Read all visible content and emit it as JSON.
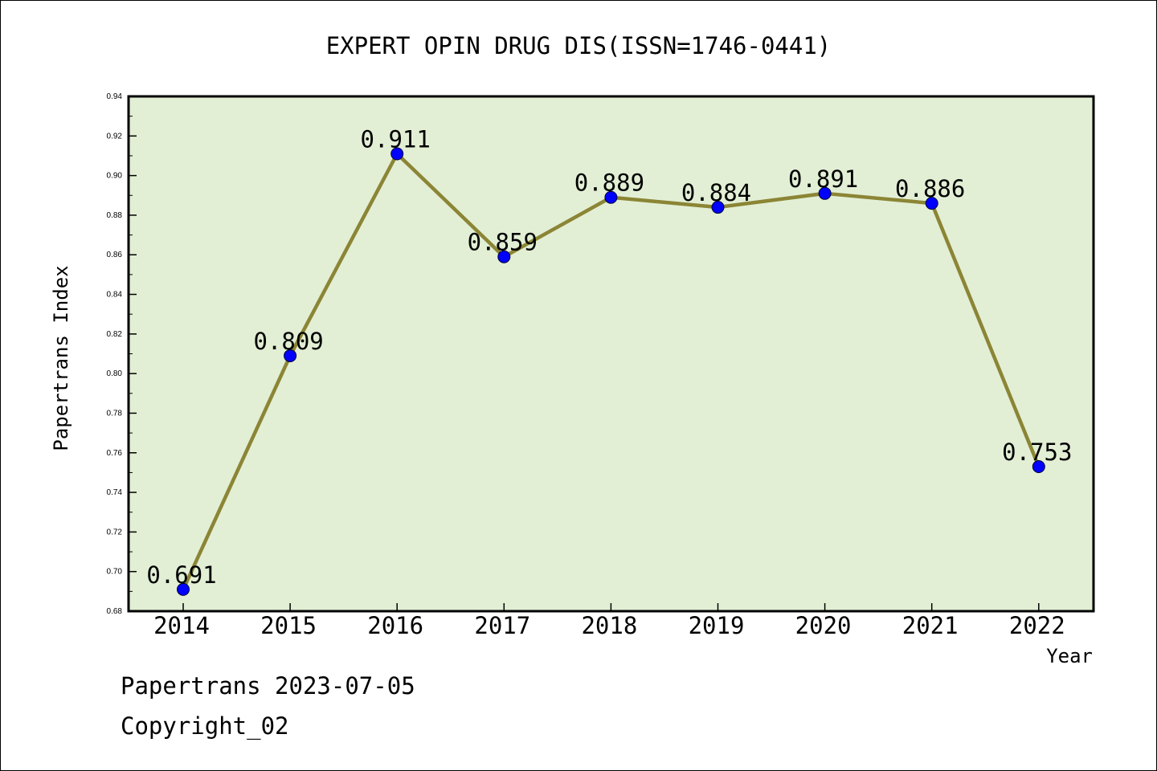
{
  "chart_data": {
    "type": "line",
    "title": "EXPERT OPIN DRUG DIS(ISSN=1746-0441)",
    "xlabel": "Year",
    "ylabel": "Papertrans Index",
    "categories": [
      "2014",
      "2015",
      "2016",
      "2017",
      "2018",
      "2019",
      "2020",
      "2021",
      "2022"
    ],
    "series": [
      {
        "values": [
          0.691,
          0.809,
          0.911,
          0.859,
          0.889,
          0.884,
          0.891,
          0.886,
          0.753
        ]
      }
    ],
    "data_labels": [
      "0.691",
      "0.809",
      "0.911",
      "0.859",
      "0.889",
      "0.884",
      "0.891",
      "0.886",
      "0.753"
    ],
    "ylim": [
      0.68,
      0.94
    ],
    "yticks": [
      "0.68",
      "0.70",
      "0.72",
      "0.74",
      "0.76",
      "0.78",
      "0.80",
      "0.82",
      "0.84",
      "0.86",
      "0.88",
      "0.90",
      "0.92",
      "0.94"
    ],
    "grid": false,
    "colors": {
      "plot_background": "#e2efd5",
      "line": "#8b8535",
      "marker": "#0000ff"
    }
  },
  "footer": {
    "line1": "Papertrans 2023-07-05",
    "line2": "Copyright_02"
  }
}
